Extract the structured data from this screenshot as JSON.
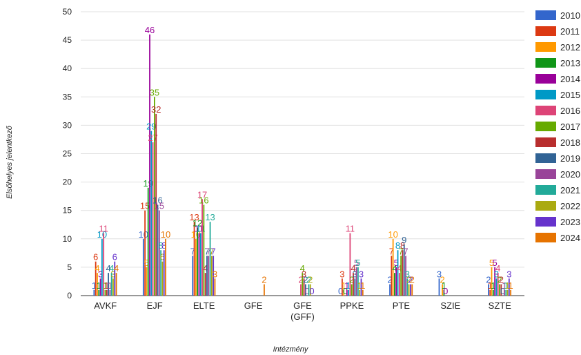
{
  "chart_data": {
    "type": "bar",
    "xlabel": "Intézmény",
    "ylabel": "Elsőhelyes jelentkező",
    "ylim": [
      0,
      50
    ],
    "yticks": [
      0,
      5,
      10,
      15,
      20,
      25,
      30,
      35,
      40,
      45,
      50
    ],
    "grid": true,
    "legend_position": "right",
    "categories": [
      "AVKF",
      "EJF",
      "ELTE",
      "GFE",
      "GFE\n(GFF)",
      "PPKE",
      "PTE",
      "SZIE",
      "SZTE"
    ],
    "series": [
      {
        "name": "2010",
        "color": "#3366cc",
        "values": [
          1,
          10,
          7,
          null,
          null,
          0,
          2,
          3,
          2
        ]
      },
      {
        "name": "2011",
        "color": "#dc3912",
        "values": [
          6,
          15,
          13,
          null,
          null,
          3,
          7,
          null,
          1
        ]
      },
      {
        "name": "2012",
        "color": "#ff9900",
        "values": [
          4,
          5,
          10,
          null,
          null,
          1,
          10,
          2,
          5
        ]
      },
      {
        "name": "2013",
        "color": "#109618",
        "values": [
          1,
          19,
          12,
          null,
          null,
          0,
          4,
          1,
          1
        ]
      },
      {
        "name": "2014",
        "color": "#990099",
        "values": [
          3,
          46,
          11,
          null,
          null,
          1,
          5,
          0,
          5
        ]
      },
      {
        "name": "2015",
        "color": "#0099c6",
        "values": [
          10,
          29,
          11,
          null,
          null,
          1,
          8,
          null,
          3
        ]
      },
      {
        "name": "2016",
        "color": "#dd4477",
        "values": [
          11,
          27,
          17,
          null,
          2,
          11,
          4,
          null,
          4
        ]
      },
      {
        "name": "2017",
        "color": "#66aa00",
        "values": [
          1,
          35,
          16,
          null,
          4,
          2,
          7,
          null,
          2
        ]
      },
      {
        "name": "2018",
        "color": "#b82e2e",
        "values": [
          1,
          32,
          4,
          null,
          3,
          4,
          8,
          null,
          2
        ]
      },
      {
        "name": "2019",
        "color": "#316395",
        "values": [
          4,
          16,
          7,
          null,
          2,
          3,
          9,
          null,
          0
        ]
      },
      {
        "name": "2020",
        "color": "#994499",
        "values": [
          1,
          15,
          7,
          null,
          0,
          5,
          7,
          null,
          1
        ]
      },
      {
        "name": "2021",
        "color": "#22aa99",
        "values": [
          4,
          8,
          13,
          null,
          2,
          5,
          3,
          null,
          1
        ]
      },
      {
        "name": "2022",
        "color": "#aaaa11",
        "values": [
          3,
          6,
          7,
          null,
          2,
          1,
          2,
          null,
          1
        ]
      },
      {
        "name": "2023",
        "color": "#6633cc",
        "values": [
          6,
          8,
          7,
          null,
          0,
          3,
          2,
          null,
          3
        ]
      },
      {
        "name": "2024",
        "color": "#e67300",
        "values": [
          4,
          10,
          3,
          2,
          null,
          1,
          2,
          null,
          1
        ]
      }
    ]
  }
}
